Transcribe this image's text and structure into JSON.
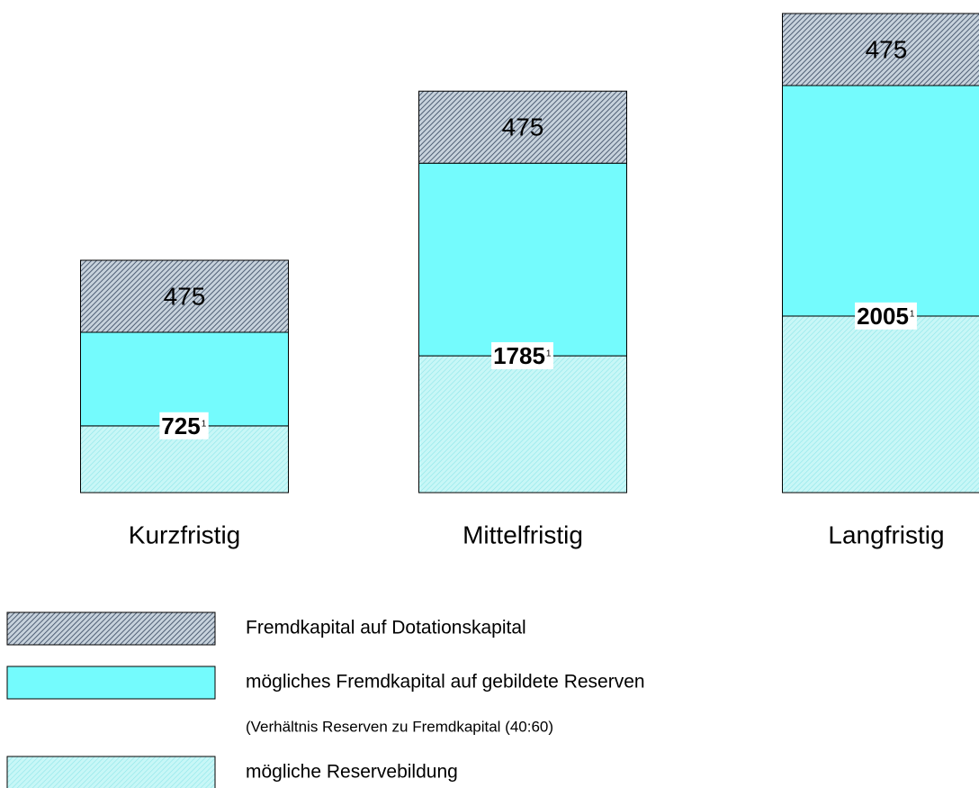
{
  "chart_data": {
    "type": "stacked-bar",
    "categories": [
      "Kurzfristig",
      "Mittelfristig",
      "Langfristig"
    ],
    "series": [
      {
        "name": "Fremdkapital auf Dotationskapital",
        "color": "#8a9bb0",
        "pattern": "hatch",
        "values": [
          475,
          475,
          475
        ],
        "show_values": true
      },
      {
        "name": "mögliches Fremdkapital auf gebildete Reserven",
        "note": "(Verhältnis Reserven zu Fremdkapital (40:60)",
        "color": "#74fbfd",
        "pattern": "solid",
        "values": [
          617,
          1270,
          1520
        ]
      },
      {
        "name": "mögliche Reservebildung",
        "color": "#aef3f3",
        "pattern": "dots",
        "values": [
          440,
          902,
          1164
        ]
      }
    ],
    "annotations": [
      {
        "value": 725,
        "footnote": "1"
      },
      {
        "value": 1785,
        "footnote": "1"
      },
      {
        "value": 2005,
        "footnote": "1"
      }
    ]
  }
}
